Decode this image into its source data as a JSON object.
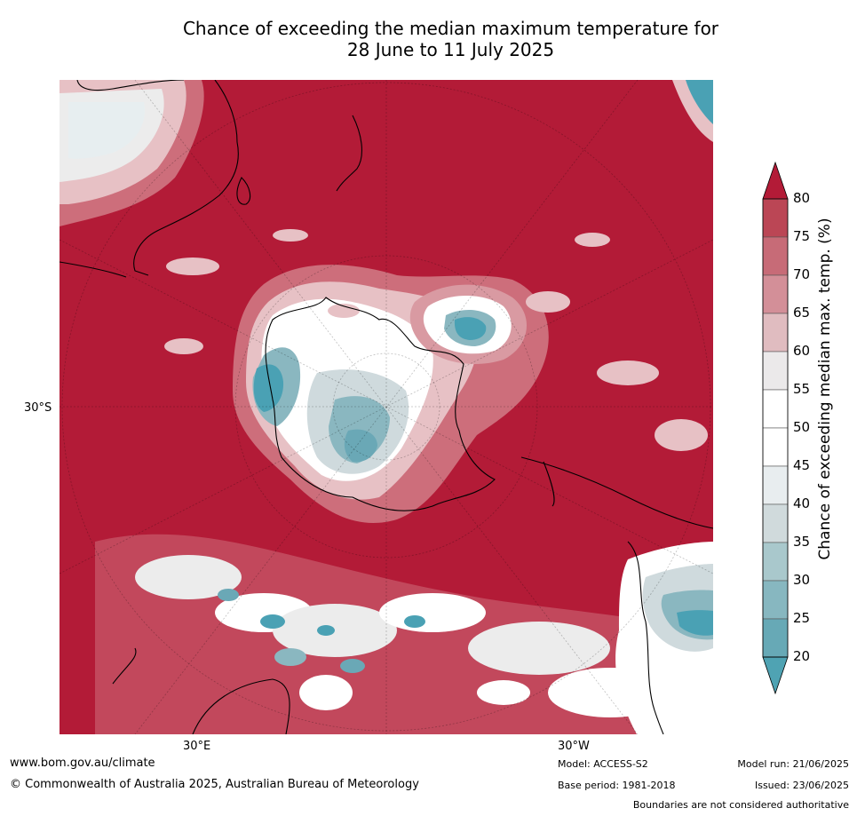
{
  "title": {
    "line1": "Chance of exceeding the median maximum temperature for",
    "line2": "28 June to 11 July 2025"
  },
  "map": {
    "lat_label": "30°S",
    "lon_labels": [
      "30°E",
      "30°W"
    ],
    "colors": {
      "hot": "#b31b37",
      "warm_75": "#c44a5c",
      "warm_70": "#cd6e7b",
      "warm_65": "#d99aa2",
      "warm_60": "#e7c1c5",
      "neutral_55": "#ececec",
      "neutral": "#ffffff",
      "cool_45": "#e7eef0",
      "cool_40": "#cfdadd",
      "cool_35": "#aacbcf",
      "cool_30": "#8ab7c0",
      "cool_25": "#6aa8b6",
      "cold": "#4aa1b4"
    }
  },
  "colorbar": {
    "ticks": [
      "80",
      "75",
      "70",
      "65",
      "60",
      "55",
      "50",
      "45",
      "40",
      "35",
      "30",
      "25",
      "20"
    ],
    "label": "Chance of exceeding median max. temp. (%)",
    "bands": [
      {
        "level": 20,
        "color": "#4fa3b3"
      },
      {
        "level": 25,
        "color": "#67a9b6"
      },
      {
        "level": 30,
        "color": "#87b7c0"
      },
      {
        "level": 35,
        "color": "#a9c8cc"
      },
      {
        "level": 40,
        "color": "#d0dadc"
      },
      {
        "level": 45,
        "color": "#e8edef"
      },
      {
        "level": 50,
        "color": "#ffffff"
      },
      {
        "level": 55,
        "color": "#ffffff"
      },
      {
        "level": 60,
        "color": "#ebe9ea"
      },
      {
        "level": 65,
        "color": "#e0bcc0"
      },
      {
        "level": 70,
        "color": "#d38f98"
      },
      {
        "level": 75,
        "color": "#c76b77"
      },
      {
        "level": 80,
        "color": "#bb4655"
      },
      {
        "level": 85,
        "color": "#b31b37"
      }
    ]
  },
  "footer": {
    "website": "www.bom.gov.au/climate",
    "copyright": "© Commonwealth of Australia 2025, Australian Bureau of Meteorology",
    "model": "Model: ACCESS-S2",
    "base_period": "Base period: 1981-2018",
    "model_run": "Model run: 21/06/2025",
    "issued": "Issued: 23/06/2025",
    "disclaimer": "Boundaries are not considered authoritative"
  }
}
